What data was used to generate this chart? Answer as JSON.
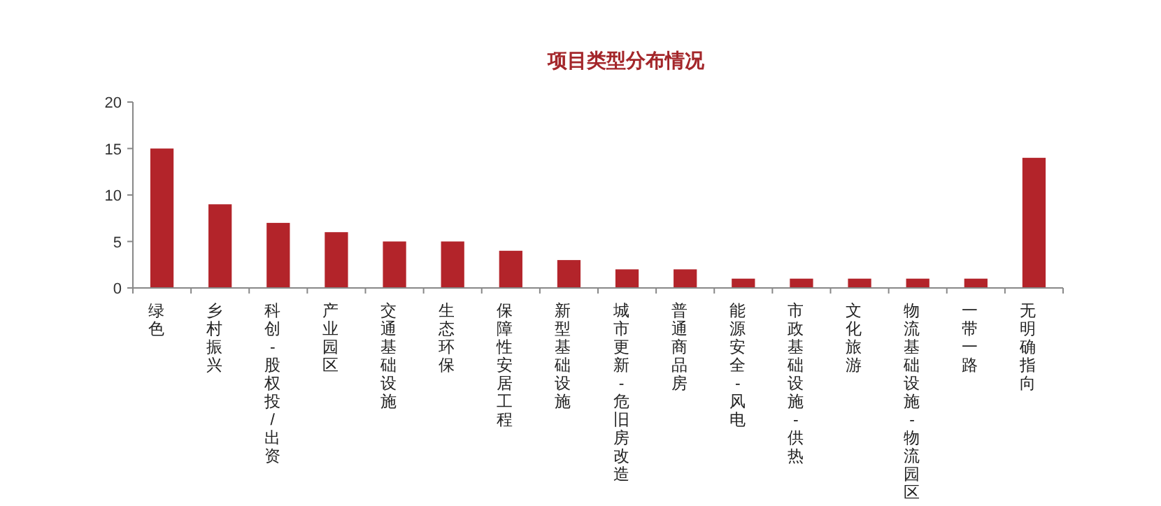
{
  "chart_data": {
    "type": "bar",
    "title": "项目类型分布情况",
    "categories": [
      "绿色",
      "乡村振兴",
      "科创-股权投/出资",
      "产业园区",
      "交通基础设施",
      "生态环保",
      "保障性安居工程",
      "新型基础设施",
      "城市更新-危旧房改造",
      "普通商品房",
      "能源安全-风电",
      "市政基础设施-供热",
      "文化旅游",
      "物流基础设施-物流园区",
      "一带一路",
      "无明确指向"
    ],
    "values": [
      15,
      9,
      7,
      6,
      5,
      5,
      4,
      3,
      2,
      2,
      1,
      1,
      1,
      1,
      1,
      14
    ],
    "color": "#b3242a",
    "ylim": [
      0,
      20
    ],
    "yticks": [
      0,
      5,
      10,
      15,
      20
    ],
    "grid": false
  }
}
